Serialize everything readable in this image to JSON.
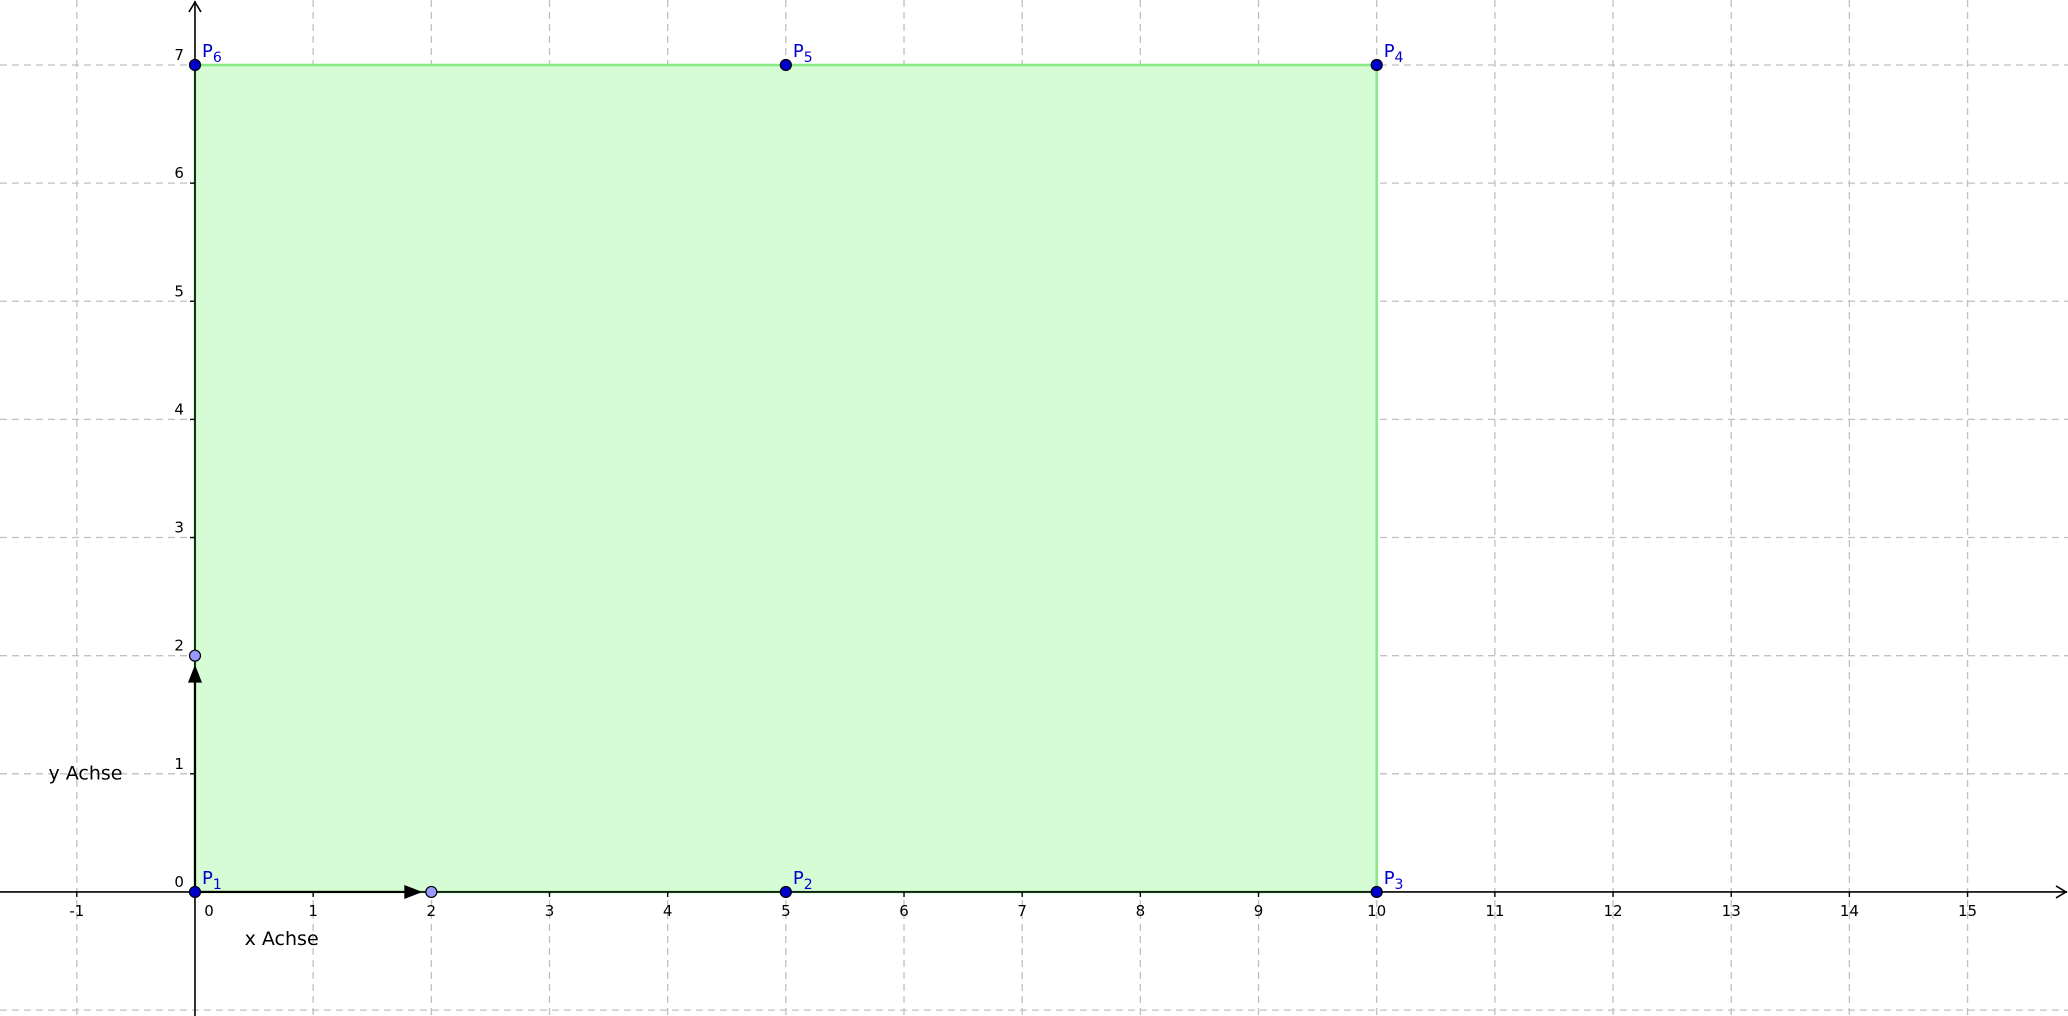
{
  "plot": {
    "x_range": [
      -1.65,
      15.85
    ],
    "y_range": [
      -1.05,
      7.55
    ],
    "grid": true,
    "x_ticks": [
      -1,
      0,
      1,
      2,
      3,
      4,
      5,
      6,
      7,
      8,
      9,
      10,
      11,
      12,
      13,
      14,
      15
    ],
    "y_ticks": [
      0,
      1,
      2,
      3,
      4,
      5,
      6,
      7
    ],
    "x_axis_label": "x Achse",
    "y_axis_label": "y Achse"
  },
  "region": {
    "corners": [
      [
        0,
        0
      ],
      [
        10,
        0
      ],
      [
        10,
        7
      ],
      [
        0,
        7
      ]
    ],
    "fill_color": "#d5fcd5",
    "stroke_color": "#86e986"
  },
  "vectors": [
    {
      "from": [
        0,
        0
      ],
      "to": [
        2,
        0
      ]
    },
    {
      "from": [
        0,
        0
      ],
      "to": [
        0,
        2
      ]
    }
  ],
  "points": [
    {
      "name": "P",
      "sub": "1",
      "x": 0,
      "y": 0,
      "color": "#0000cc"
    },
    {
      "name": "P",
      "sub": "2",
      "x": 5,
      "y": 0,
      "color": "#0000cc"
    },
    {
      "name": "P",
      "sub": "3",
      "x": 10,
      "y": 0,
      "color": "#0000cc"
    },
    {
      "name": "P",
      "sub": "4",
      "x": 10,
      "y": 7,
      "color": "#0000cc"
    },
    {
      "name": "P",
      "sub": "5",
      "x": 5,
      "y": 7,
      "color": "#0000cc"
    },
    {
      "name": "P",
      "sub": "6",
      "x": 0,
      "y": 7,
      "color": "#0000cc"
    }
  ],
  "vector_tips": [
    {
      "x": 2,
      "y": 0,
      "color": "#9999ff"
    },
    {
      "x": 0,
      "y": 2,
      "color": "#9999ff"
    }
  ],
  "colors": {
    "grid": "#c0c0c0",
    "axis": "#000000",
    "point_outline": "#000000"
  }
}
